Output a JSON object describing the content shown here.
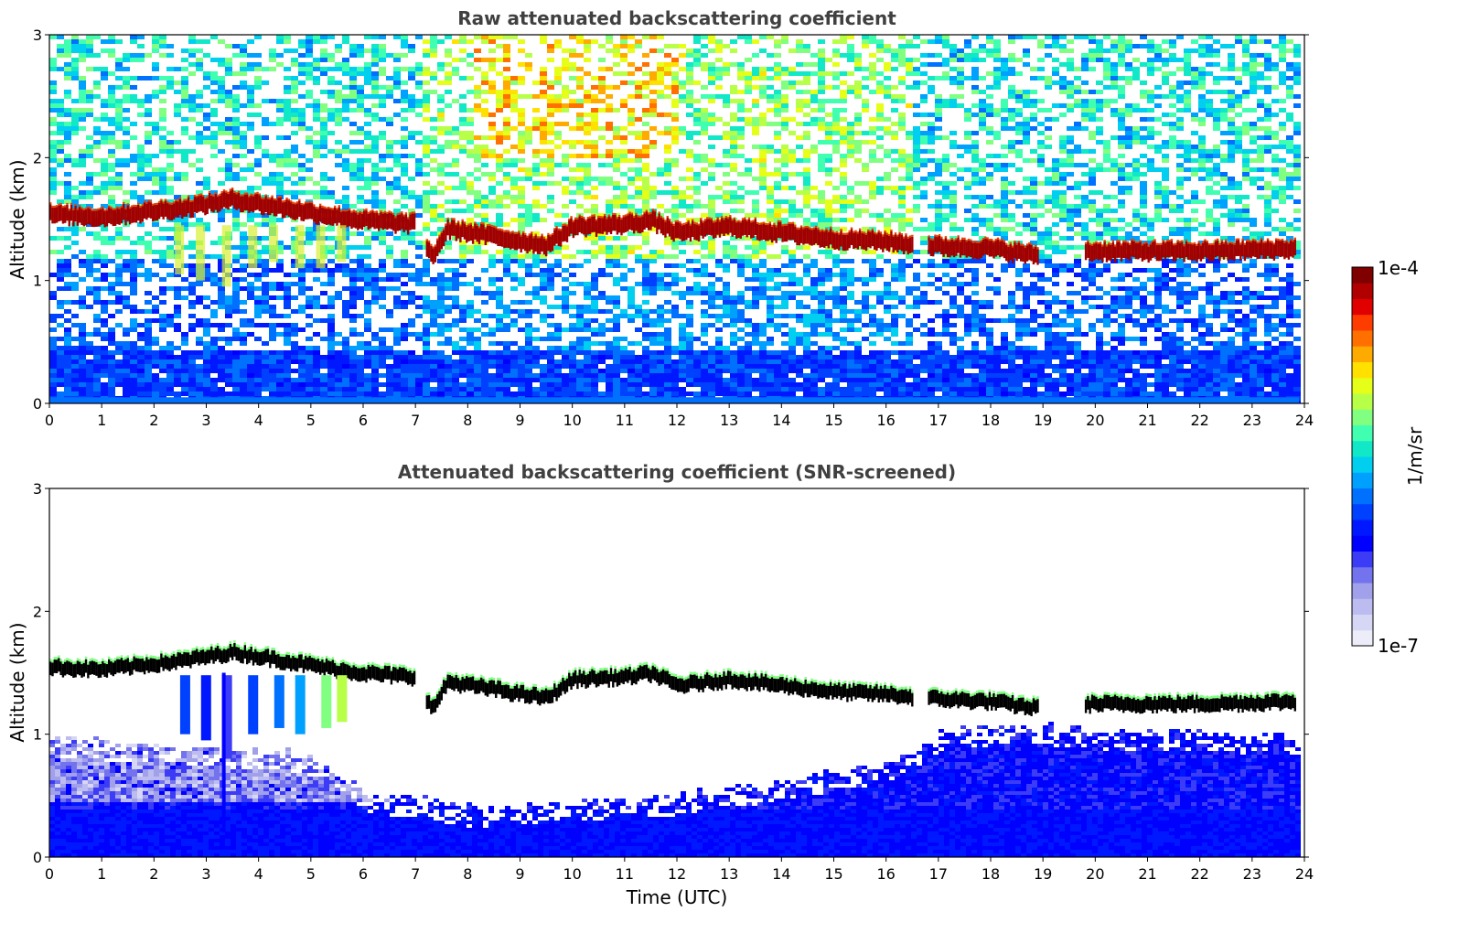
{
  "chart_data": [
    {
      "type": "heatmap",
      "title": "Raw attenuated backscattering coefficient",
      "xlabel": "",
      "ylabel": "Altitude (km)",
      "xlim": [
        0,
        24
      ],
      "ylim": [
        0,
        3
      ],
      "x_ticks": [
        "0",
        "1",
        "2",
        "3",
        "4",
        "5",
        "6",
        "7",
        "8",
        "9",
        "10",
        "11",
        "12",
        "13",
        "14",
        "15",
        "16",
        "17",
        "18",
        "19",
        "20",
        "21",
        "22",
        "23",
        "24"
      ],
      "y_ticks": [
        "0",
        "1",
        "2",
        "3"
      ],
      "colormap": "jet",
      "color_scale": "log",
      "color_range": [
        "1e-7",
        "1e-4"
      ],
      "cloud_layer_top_km": [
        [
          0.0,
          1.6
        ],
        [
          1.0,
          1.58
        ],
        [
          1.4,
          1.6
        ],
        [
          2.5,
          1.65
        ],
        [
          3.2,
          1.7
        ],
        [
          3.5,
          1.72
        ],
        [
          4.5,
          1.65
        ],
        [
          5.5,
          1.58
        ],
        [
          6.0,
          1.55
        ],
        [
          7.0,
          1.52
        ],
        [
          7.3,
          1.25
        ],
        [
          7.6,
          1.48
        ],
        [
          8.5,
          1.42
        ],
        [
          9.0,
          1.38
        ],
        [
          9.5,
          1.35
        ],
        [
          10.0,
          1.5
        ],
        [
          11.0,
          1.52
        ],
        [
          11.5,
          1.55
        ],
        [
          12.0,
          1.45
        ],
        [
          13.0,
          1.5
        ],
        [
          14.0,
          1.45
        ],
        [
          15.0,
          1.4
        ],
        [
          16.0,
          1.38
        ],
        [
          16.4,
          1.36
        ],
        [
          17.0,
          1.34
        ],
        [
          18.0,
          1.32
        ],
        [
          18.8,
          1.27
        ],
        [
          19.8,
          1.3
        ],
        [
          22.0,
          1.3
        ],
        [
          23.8,
          1.32
        ]
      ],
      "segments_hours": [
        [
          0,
          7.0
        ],
        [
          7.2,
          16.5
        ],
        [
          16.8,
          18.9
        ],
        [
          19.8,
          23.8
        ]
      ],
      "aerosol_layer_top_km": 0.5
    },
    {
      "type": "heatmap",
      "title": "Attenuated backscattering coefficient (SNR-screened)",
      "xlabel": "Time (UTC)",
      "ylabel": "Altitude (km)",
      "xlim": [
        0,
        24
      ],
      "ylim": [
        0,
        3
      ],
      "x_ticks": [
        "0",
        "1",
        "2",
        "3",
        "4",
        "5",
        "6",
        "7",
        "8",
        "9",
        "10",
        "11",
        "12",
        "13",
        "14",
        "15",
        "16",
        "17",
        "18",
        "19",
        "20",
        "21",
        "22",
        "23",
        "24"
      ],
      "y_ticks": [
        "0",
        "1",
        "2",
        "3"
      ],
      "colormap": "jet",
      "color_scale": "log",
      "color_range": [
        "1e-7",
        "1e-4"
      ],
      "screened_aerosol_top_km": [
        [
          0,
          0.95
        ],
        [
          2,
          0.9
        ],
        [
          3,
          0.88
        ],
        [
          5,
          0.8
        ],
        [
          6,
          0.5
        ],
        [
          7,
          0.45
        ],
        [
          8,
          0.38
        ],
        [
          10,
          0.42
        ],
        [
          12,
          0.48
        ],
        [
          14,
          0.6
        ],
        [
          16,
          0.75
        ],
        [
          16.5,
          0.85
        ],
        [
          17,
          1.0
        ],
        [
          18,
          1.05
        ],
        [
          19,
          1.05
        ],
        [
          20,
          1.0
        ],
        [
          22,
          1.0
        ],
        [
          24,
          0.95
        ]
      ]
    }
  ],
  "colorbar": {
    "label": "1/m/sr",
    "max_label": "1e-4",
    "min_label": "1e-7",
    "colors": [
      "#ededfa",
      "#d6d6f5",
      "#bcbcf0",
      "#a0a0eb",
      "#7373ee",
      "#3c3cf6",
      "#0000ff",
      "#0018ff",
      "#0040ff",
      "#0070ff",
      "#00a0ff",
      "#00cfef",
      "#10e8c8",
      "#40ffb0",
      "#80ff80",
      "#b8ff48",
      "#e6ff18",
      "#ffe000",
      "#ffaa00",
      "#ff7000",
      "#ff3c00",
      "#e00000",
      "#b00000",
      "#800000"
    ]
  }
}
